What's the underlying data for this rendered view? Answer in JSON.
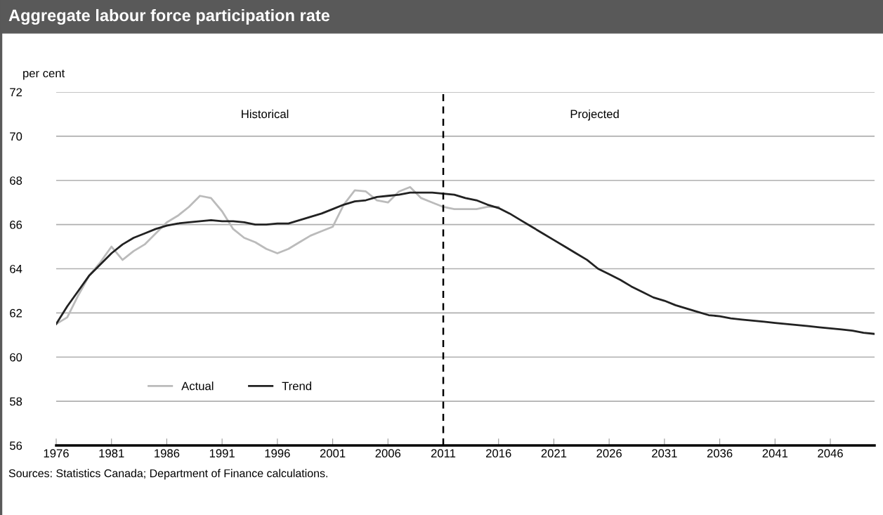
{
  "chart_data": {
    "type": "line",
    "title": "Aggregate labour force participation rate",
    "ylabel": "per cent",
    "xlim": [
      1976,
      2050
    ],
    "xticks": [
      1976,
      1981,
      1986,
      1991,
      1996,
      2001,
      2006,
      2011,
      2016,
      2021,
      2026,
      2031,
      2036,
      2041,
      2046
    ],
    "ylim": [
      56,
      72
    ],
    "yticks": [
      56,
      58,
      60,
      62,
      64,
      66,
      68,
      70,
      72
    ],
    "grid": "y",
    "legend": "bottom left",
    "line_style": "solid",
    "marker": "none",
    "ref_lines": [
      {
        "axis": "x",
        "value": 2011,
        "color": "#000000",
        "line_style": "dashed"
      }
    ],
    "annotations": [
      "Historical",
      "Projected",
      "Sources: Statistics Canada; Department of Finance calculations."
    ],
    "series": [
      {
        "name": "Actual",
        "color": "#bbbbbb",
        "x": [
          1976,
          1977,
          1978,
          1979,
          1980,
          1981,
          1982,
          1983,
          1984,
          1985,
          1986,
          1987,
          1988,
          1989,
          1990,
          1991,
          1992,
          1993,
          1994,
          1995,
          1996,
          1997,
          1998,
          1999,
          2000,
          2001,
          2002,
          2003,
          2004,
          2005,
          2006,
          2007,
          2008,
          2009,
          2010,
          2011,
          2012,
          2013,
          2014,
          2015,
          2016
        ],
        "values": [
          61.5,
          61.8,
          62.8,
          63.7,
          64.3,
          65.0,
          64.4,
          64.8,
          65.1,
          65.6,
          66.1,
          66.4,
          66.8,
          67.3,
          67.2,
          66.6,
          65.8,
          65.4,
          65.2,
          64.9,
          64.7,
          64.9,
          65.2,
          65.5,
          65.7,
          65.9,
          66.9,
          67.55,
          67.5,
          67.1,
          67.0,
          67.5,
          67.7,
          67.2,
          67.0,
          66.8,
          66.7,
          66.7,
          66.7,
          66.8,
          66.8
        ]
      },
      {
        "name": "Trend",
        "color": "#222222",
        "x": [
          1976,
          1977,
          1978,
          1979,
          1980,
          1981,
          1982,
          1983,
          1984,
          1985,
          1986,
          1987,
          1988,
          1989,
          1990,
          1991,
          1992,
          1993,
          1994,
          1995,
          1996,
          1997,
          1998,
          1999,
          2000,
          2001,
          2002,
          2003,
          2004,
          2005,
          2006,
          2007,
          2008,
          2009,
          2010,
          2011,
          2012,
          2013,
          2014,
          2015,
          2016,
          2017,
          2018,
          2019,
          2020,
          2021,
          2022,
          2023,
          2024,
          2025,
          2026,
          2027,
          2028,
          2029,
          2030,
          2031,
          2032,
          2033,
          2034,
          2035,
          2036,
          2037,
          2038,
          2039,
          2040,
          2041,
          2042,
          2043,
          2044,
          2045,
          2046,
          2047,
          2048,
          2049,
          2050
        ],
        "values": [
          61.5,
          62.3,
          63.0,
          63.7,
          64.2,
          64.7,
          65.1,
          65.4,
          65.6,
          65.8,
          65.95,
          66.05,
          66.1,
          66.15,
          66.2,
          66.15,
          66.15,
          66.1,
          66.0,
          66.0,
          66.05,
          66.05,
          66.2,
          66.35,
          66.5,
          66.7,
          66.9,
          67.05,
          67.1,
          67.25,
          67.3,
          67.35,
          67.45,
          67.45,
          67.45,
          67.4,
          67.35,
          67.2,
          67.1,
          66.9,
          66.75,
          66.5,
          66.2,
          65.9,
          65.6,
          65.3,
          65.0,
          64.7,
          64.4,
          64.0,
          63.75,
          63.5,
          63.2,
          62.95,
          62.7,
          62.55,
          62.35,
          62.2,
          62.05,
          61.9,
          61.85,
          61.75,
          61.7,
          61.65,
          61.6,
          61.55,
          61.5,
          61.45,
          61.4,
          61.35,
          61.3,
          61.25,
          61.2,
          61.1,
          61.05
        ]
      }
    ]
  }
}
